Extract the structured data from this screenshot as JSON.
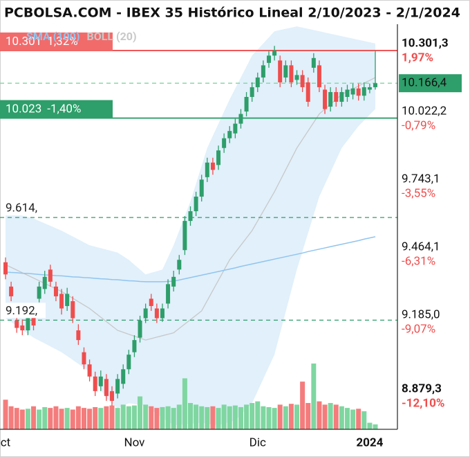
{
  "chart_data": {
    "type": "candlestick",
    "title": "PCBOLSA.COM - IBEX 35 Histórico Lineal 2/10/2023 - 2/1/2024",
    "categories": [
      "ct",
      null,
      null,
      null,
      null,
      null,
      null,
      null,
      null,
      null,
      null,
      null,
      null,
      null,
      null,
      null,
      null,
      null,
      null,
      null,
      null,
      null,
      null,
      "Nov",
      null,
      null,
      null,
      null,
      null,
      null,
      null,
      null,
      null,
      null,
      null,
      null,
      null,
      null,
      null,
      null,
      null,
      null,
      null,
      null,
      null,
      "Dic",
      null,
      null,
      null,
      null,
      null,
      null,
      null,
      null,
      null,
      null,
      null,
      null,
      null,
      null,
      null,
      null,
      null,
      null,
      null,
      "2024",
      null
    ],
    "open": [
      9430,
      9330,
      9190,
      9170,
      9150,
      9210,
      9280,
      9320,
      9400,
      9330,
      9300,
      9250,
      9270,
      9150,
      9060,
      9010,
      8960,
      8920,
      8950,
      8900,
      8890,
      8930,
      8990,
      9060,
      9120,
      9200,
      9280,
      9240,
      9200,
      9260,
      9330,
      9400,
      9480,
      9600,
      9640,
      9700,
      9780,
      9840,
      9830,
      9900,
      9940,
      9960,
      10000,
      10050,
      10110,
      10150,
      10190,
      10250,
      10280,
      10260,
      10190,
      10240,
      10180,
      10200,
      10170,
      10230,
      10240,
      10140,
      10070,
      10130,
      10090,
      10110,
      10120,
      10145,
      10115,
      10140,
      10150
    ],
    "high": [
      9450,
      9350,
      9210,
      9195,
      9220,
      9235,
      9350,
      9395,
      9420,
      9350,
      9320,
      9325,
      9290,
      9175,
      9080,
      9030,
      8980,
      8985,
      8970,
      8920,
      8970,
      9010,
      9070,
      9130,
      9210,
      9260,
      9300,
      9260,
      9260,
      9360,
      9395,
      9460,
      9620,
      9660,
      9720,
      9790,
      9860,
      9860,
      9910,
      9960,
      9990,
      10020,
      10060,
      10130,
      10170,
      10210,
      10260,
      10300,
      10320,
      10280,
      10260,
      10260,
      10220,
      10220,
      10190,
      10290,
      10260,
      10160,
      10150,
      10150,
      10150,
      10160,
      10165,
      10165,
      10170,
      10165,
      10301.3
    ],
    "low": [
      9360,
      9270,
      9140,
      9130,
      9130,
      9150,
      9265,
      9300,
      9330,
      9270,
      9215,
      9230,
      9180,
      9090,
      8990,
      8940,
      8880,
      8900,
      8860,
      8840,
      8870,
      8910,
      8970,
      9040,
      9100,
      9180,
      9230,
      9180,
      9185,
      9240,
      9310,
      9380,
      9460,
      9580,
      9620,
      9680,
      9760,
      9790,
      9810,
      9880,
      9920,
      9940,
      9980,
      10030,
      10090,
      10130,
      10170,
      10230,
      10260,
      10150,
      10170,
      10150,
      10160,
      10130,
      10070,
      10210,
      10130,
      10040,
      10050,
      10070,
      10070,
      10090,
      10100,
      10095,
      10095,
      10125,
      10140
    ],
    "close": [
      9380,
      9290,
      9160,
      9150,
      9200,
      9170,
      9330,
      9370,
      9350,
      9290,
      9240,
      9300,
      9200,
      9110,
      9010,
      8960,
      8900,
      8960,
      8880,
      8860,
      8950,
      8990,
      9050,
      9110,
      9190,
      9240,
      9250,
      9200,
      9240,
      9340,
      9370,
      9440,
      9600,
      9640,
      9700,
      9770,
      9840,
      9810,
      9890,
      9940,
      9970,
      10000,
      10040,
      10110,
      10150,
      10190,
      10240,
      10280,
      10300,
      10170,
      10240,
      10170,
      10200,
      10150,
      10090,
      10270,
      10150,
      10060,
      10130,
      10090,
      10130,
      10140,
      10145,
      10115,
      10150,
      10150,
      10166.4
    ],
    "volume": [
      180,
      140,
      130,
      120,
      125,
      140,
      120,
      135,
      130,
      140,
      125,
      130,
      120,
      140,
      130,
      125,
      135,
      130,
      140,
      145,
      130,
      150,
      140,
      145,
      200,
      150,
      140,
      130,
      135,
      140,
      130,
      150,
      310,
      160,
      150,
      140,
      135,
      140,
      130,
      150,
      140,
      145,
      135,
      150,
      160,
      170,
      140,
      135,
      130,
      150,
      140,
      155,
      150,
      290,
      160,
      400,
      170,
      150,
      160,
      150,
      140,
      130,
      120,
      125,
      110,
      40,
      30
    ],
    "up_color": "#2e9e6a",
    "down_color": "#ef4d4d",
    "up_volume_color": "#7fd6a0",
    "down_volume_color": "#f47c7c",
    "overlays": [
      {
        "name": "SMA (100)",
        "color": "#90c4ee",
        "values": [
          9390,
          9388,
          9387,
          9385,
          9384,
          9382,
          9380,
          9378,
          9377,
          9375,
          9374,
          9372,
          9370,
          9369,
          9367,
          9366,
          9364,
          9362,
          9361,
          9359,
          9358,
          9356,
          9354,
          9353,
          9351,
          9350,
          9350,
          9350,
          9350,
          9351,
          9352,
          9357,
          9362,
          9367,
          9372,
          9377,
          9382,
          9387,
          9392,
          9397,
          9402,
          9407,
          9413,
          9418,
          9423,
          9428,
          9433,
          9438,
          9443,
          9448,
          9453,
          9458,
          9463,
          9468,
          9474,
          9479,
          9484,
          9489,
          9494,
          9499,
          9504,
          9509,
          9514,
          9519,
          9525,
          9530,
          9535
        ]
      },
      {
        "name": "BOLL (20)",
        "color": "#c8c8c8",
        "fill": "#e1f0fb",
        "upper": [
          9640,
          9634,
          9628,
          9622,
          9616,
          9610,
          9600,
          9590,
          9580,
          9570,
          9560,
          9548,
          9536,
          9524,
          9512,
          9500,
          9494,
          9488,
          9482,
          9476,
          9470,
          9455,
          9440,
          9420,
          9400,
          9380,
          9387,
          9393,
          9400,
          9450,
          9500,
          9560,
          9620,
          9680,
          9753,
          9827,
          9900,
          9950,
          10000,
          10050,
          10100,
          10145,
          10190,
          10235,
          10280,
          10305,
          10330,
          10355,
          10380,
          10385,
          10390,
          10395,
          10400,
          10395,
          10390,
          10385,
          10380,
          10375,
          10370,
          10365,
          10360,
          10355,
          10350,
          10345,
          10340,
          10335,
          10330
        ],
        "middle": [
          9420,
          9409,
          9398,
          9387,
          9376,
          9365,
          9354,
          9343,
          9332,
          9321,
          9310,
          9296,
          9282,
          9268,
          9254,
          9240,
          9222,
          9204,
          9186,
          9168,
          9150,
          9142,
          9134,
          9126,
          9118,
          9110,
          9116,
          9122,
          9128,
          9134,
          9140,
          9158,
          9176,
          9194,
          9212,
          9230,
          9272,
          9314,
          9356,
          9398,
          9440,
          9470,
          9500,
          9530,
          9560,
          9600,
          9640,
          9680,
          9720,
          9765,
          9810,
          9855,
          9900,
          9935,
          9970,
          10005,
          10040,
          10060,
          10080,
          10100,
          10120,
          10132,
          10143,
          10155,
          10167,
          10178,
          10190
        ],
        "lower": [
          9200,
          9184,
          9168,
          9152,
          9136,
          9120,
          9108,
          9096,
          9084,
          9072,
          9060,
          9044,
          9028,
          9012,
          8996,
          8980,
          8943,
          8907,
          8870,
          8850,
          8830,
          8840,
          8850,
          8847,
          8843,
          8840,
          8823,
          8807,
          8790,
          8775,
          8760,
          8762,
          8764,
          8766,
          8768,
          8770,
          8767,
          8763,
          8760,
          8767,
          8773,
          8780,
          8803,
          8827,
          8850,
          8900,
          8950,
          9000,
          9050,
          9138,
          9225,
          9313,
          9400,
          9475,
          9550,
          9625,
          9700,
          9750,
          9800,
          9850,
          9900,
          9930,
          9960,
          9990,
          10013,
          10037,
          10060
        ]
      }
    ],
    "levels": [
      {
        "value": 10301,
        "label": "10.301",
        "change": "1,32%",
        "color": "#ef4d4d",
        "box": "#f26b6b",
        "style": "solid"
      },
      {
        "value": 10023,
        "label": "10.023",
        "change": "-1,40%",
        "color": "#2e9e6a",
        "box": "#2e9e6a",
        "style": "solid"
      },
      {
        "value": 9614,
        "label": "9.614,",
        "color": "#2e9e6a",
        "style": "dashed"
      },
      {
        "value": 9192,
        "label": "9.192,",
        "color": "#2e9e6a",
        "style": "dashed"
      }
    ],
    "last_price": {
      "value": 10166.4,
      "label": "10.166,4"
    },
    "last_price_color": "#2e9e6a",
    "ylim": [
      8743,
      10409
    ],
    "yticks": [
      {
        "value": 10301.3,
        "label": "10.301,3"
      },
      {
        "value": 10022.2,
        "label": "10.022,2"
      },
      {
        "value": 9743.1,
        "label": "9.743,1"
      },
      {
        "value": 9464.1,
        "label": "9.464,1"
      },
      {
        "value": 9185.0,
        "label": "9.185,0"
      },
      {
        "value": 8879.3,
        "label": "8.879,3"
      }
    ],
    "ytick_changes": [
      "1,97%",
      "-0,79%",
      "-3,55%",
      "-6,31%",
      "-9,07%",
      "-12,10%"
    ]
  }
}
